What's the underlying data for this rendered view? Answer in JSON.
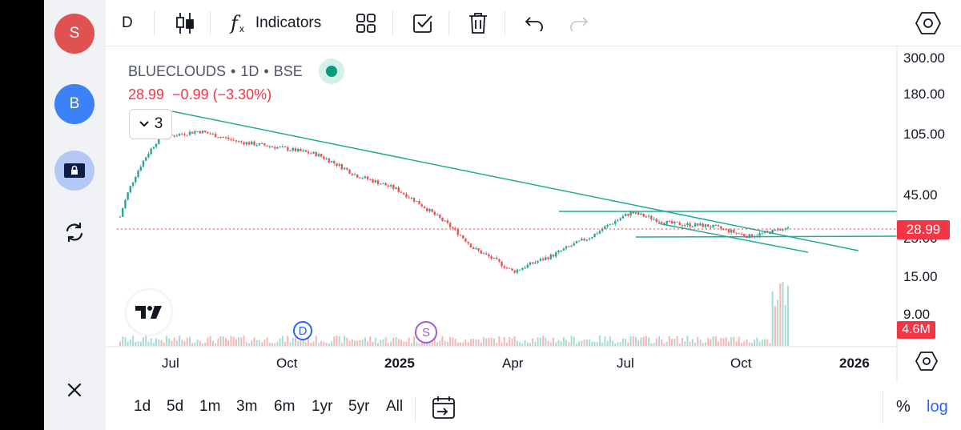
{
  "sidebar": {
    "avatars": [
      {
        "letter": "S",
        "color": "#e05252"
      },
      {
        "letter": "B",
        "color": "#3b82f6"
      }
    ],
    "icons": [
      "lock-screen-icon",
      "sync-icon",
      "close-icon"
    ]
  },
  "toolbar": {
    "interval": "D",
    "indicators_label": "Indicators"
  },
  "legend": {
    "symbol": "BLUECLOUDS",
    "sep1": "•",
    "interval": "1D",
    "sep2": "•",
    "exchange": "BSE",
    "price": "28.99",
    "change": "−0.99 (−3.30%)",
    "collapsed_count": "3"
  },
  "price_axis": {
    "labels": [
      "300.00",
      "180.00",
      "105.00",
      "45.00",
      "25.00",
      "15.00",
      "9.00"
    ],
    "last_price": "28.99",
    "volume": "4.6M"
  },
  "time_axis": {
    "labels": [
      "Jul",
      "Oct",
      "2025",
      "Apr",
      "Jul",
      "Oct",
      "2026"
    ]
  },
  "markers": {
    "dividend": "D",
    "split": "S"
  },
  "bottombar": {
    "ranges": [
      "1d",
      "5d",
      "1m",
      "3m",
      "6m",
      "1yr",
      "5yr",
      "All"
    ],
    "percent_label": "%",
    "log_label": "log"
  },
  "colors": {
    "up": "#26a69a",
    "down": "#ef5350",
    "trendline": "#22ab94",
    "price_line": "#f23645",
    "accent_blue": "#2962ff"
  },
  "chart_data": {
    "type": "candlestick",
    "symbol": "BLUECLOUDS",
    "interval": "1D",
    "exchange": "BSE",
    "scale": "log",
    "last_close": 28.99,
    "change": -0.99,
    "change_pct": -3.3,
    "volume_last": "4.6M",
    "approx_close_path": [
      {
        "x": "Jun 2024",
        "y": 34
      },
      {
        "x": "Jul 2024",
        "y": 100
      },
      {
        "x": "Aug 2024",
        "y": 110
      },
      {
        "x": "Sep 2024",
        "y": 95
      },
      {
        "x": "Oct 2024",
        "y": 88
      },
      {
        "x": "Nov 2024",
        "y": 80
      },
      {
        "x": "Dec 2024",
        "y": 60
      },
      {
        "x": "Jan 2025",
        "y": 50
      },
      {
        "x": "Feb 2025",
        "y": 35
      },
      {
        "x": "Mar 2025",
        "y": 22
      },
      {
        "x": "Apr 2025",
        "y": 16
      },
      {
        "x": "May 2025",
        "y": 20
      },
      {
        "x": "Jun 2025",
        "y": 26
      },
      {
        "x": "Jul 2025",
        "y": 36
      },
      {
        "x": "Aug 2025",
        "y": 31
      },
      {
        "x": "Sep 2025",
        "y": 30
      },
      {
        "x": "Oct 2025",
        "y": 26
      },
      {
        "x": "Nov 2025",
        "y": 29
      }
    ]
  }
}
